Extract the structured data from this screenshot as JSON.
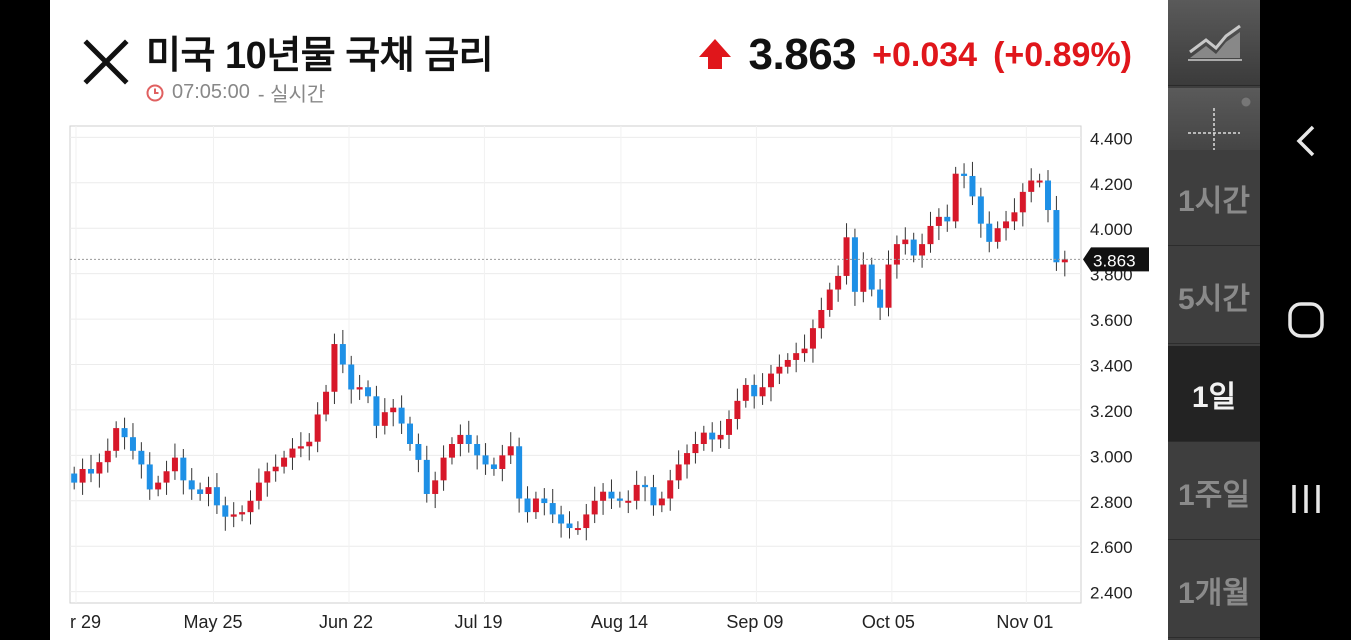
{
  "header": {
    "title": "미국 10년물 국채 금리",
    "time": "07:05:00",
    "mode": "- 실시간",
    "price": "3.863",
    "change": "+0.034",
    "change_pct": "(+0.89%)"
  },
  "colors": {
    "up": "#d7182a",
    "down": "#1e90e6",
    "accent_red": "#e0161b"
  },
  "chart_data": {
    "type": "candlestick",
    "y_ticks": [
      "4.400",
      "4.200",
      "4.000",
      "3.800",
      "3.600",
      "3.400",
      "3.200",
      "3.000",
      "2.800",
      "2.600",
      "2.400"
    ],
    "ylim": [
      2.35,
      4.45
    ],
    "x_ticks": [
      "r 29",
      "May 25",
      "Jun 22",
      "Jul 19",
      "Aug 14",
      "Sep 09",
      "Oct 05",
      "Nov 01"
    ],
    "current_price_label": "3.863",
    "current_price": 3.863,
    "grid": true,
    "closes": [
      2.88,
      2.94,
      2.92,
      2.97,
      3.02,
      3.12,
      3.08,
      3.02,
      2.96,
      2.85,
      2.88,
      2.93,
      2.99,
      2.89,
      2.85,
      2.83,
      2.86,
      2.78,
      2.73,
      2.74,
      2.75,
      2.8,
      2.88,
      2.93,
      2.95,
      2.99,
      3.03,
      3.04,
      3.06,
      3.18,
      3.28,
      3.49,
      3.4,
      3.29,
      3.3,
      3.26,
      3.13,
      3.19,
      3.21,
      3.14,
      3.05,
      2.98,
      2.83,
      2.89,
      2.99,
      3.05,
      3.09,
      3.05,
      3.0,
      2.96,
      2.94,
      3.0,
      3.04,
      2.81,
      2.75,
      2.81,
      2.79,
      2.74,
      2.7,
      2.68,
      2.68,
      2.74,
      2.8,
      2.84,
      2.81,
      2.8,
      2.8,
      2.87,
      2.86,
      2.78,
      2.81,
      2.89,
      2.96,
      3.01,
      3.05,
      3.1,
      3.07,
      3.09,
      3.16,
      3.24,
      3.31,
      3.26,
      3.3,
      3.36,
      3.39,
      3.42,
      3.45,
      3.47,
      3.56,
      3.64,
      3.73,
      3.79,
      3.96,
      3.72,
      3.84,
      3.73,
      3.65,
      3.84,
      3.93,
      3.95,
      3.88,
      3.93,
      4.01,
      4.05,
      4.03,
      4.24,
      4.23,
      4.14,
      4.02,
      3.94,
      4.0,
      4.03,
      4.07,
      4.16,
      4.21,
      4.21,
      4.08,
      3.85,
      3.863
    ],
    "opens": [
      2.92,
      2.88,
      2.94,
      2.92,
      2.97,
      3.02,
      3.12,
      3.08,
      3.02,
      2.96,
      2.85,
      2.88,
      2.93,
      2.99,
      2.89,
      2.85,
      2.83,
      2.86,
      2.78,
      2.73,
      2.74,
      2.75,
      2.8,
      2.88,
      2.93,
      2.95,
      2.99,
      3.03,
      3.04,
      3.06,
      3.18,
      3.28,
      3.49,
      3.4,
      3.29,
      3.3,
      3.26,
      3.13,
      3.19,
      3.21,
      3.14,
      3.05,
      2.98,
      2.83,
      2.89,
      2.99,
      3.05,
      3.09,
      3.05,
      3.0,
      2.96,
      2.94,
      3.0,
      3.04,
      2.81,
      2.75,
      2.81,
      2.79,
      2.74,
      2.7,
      2.68,
      2.68,
      2.74,
      2.8,
      2.84,
      2.81,
      2.8,
      2.8,
      2.87,
      2.86,
      2.78,
      2.81,
      2.89,
      2.96,
      3.01,
      3.05,
      3.1,
      3.07,
      3.09,
      3.16,
      3.24,
      3.31,
      3.26,
      3.3,
      3.36,
      3.39,
      3.42,
      3.45,
      3.47,
      3.56,
      3.64,
      3.73,
      3.79,
      3.96,
      3.72,
      3.84,
      3.73,
      3.65,
      3.84,
      3.93,
      3.95,
      3.88,
      3.93,
      4.01,
      4.05,
      4.03,
      4.24,
      4.23,
      4.14,
      4.02,
      3.94,
      4.0,
      4.03,
      4.07,
      4.16,
      4.21,
      4.21,
      4.08,
      3.85
    ]
  },
  "sidebar": {
    "timeframes": [
      "1시간",
      "5시간",
      "1일",
      "1주일",
      "1개월"
    ],
    "active": "1일"
  }
}
